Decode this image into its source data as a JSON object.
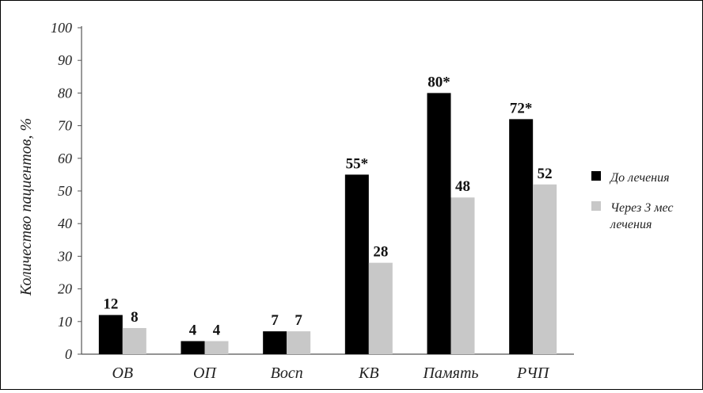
{
  "chart_data": {
    "type": "bar",
    "categories": [
      "ОВ",
      "ОП",
      "Восп",
      "КВ",
      "Память",
      "РЧП"
    ],
    "series": [
      {
        "name": "До лечения",
        "values": [
          12,
          4,
          7,
          55,
          80,
          72
        ],
        "labels": [
          "12",
          "4",
          "7",
          "55*",
          "80*",
          "72*"
        ],
        "color": "#000000"
      },
      {
        "name": "Через 3 мес лечения",
        "name_lines": [
          "Через 3 мес",
          "лечения"
        ],
        "values": [
          8,
          4,
          7,
          28,
          48,
          52
        ],
        "labels": [
          "8",
          "4",
          "7",
          "28",
          "48",
          "52"
        ],
        "color": "#c8c8c8"
      }
    ],
    "ylabel": "Количество пациентов, %",
    "ylim": [
      0,
      100
    ],
    "yticks": [
      "0",
      "10",
      "20",
      "30",
      "40",
      "50",
      "60",
      "70",
      "80",
      "90",
      "100"
    ],
    "grid": false,
    "legend": "right"
  }
}
